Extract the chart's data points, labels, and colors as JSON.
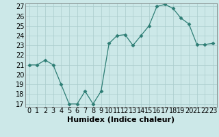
{
  "x": [
    0,
    1,
    2,
    3,
    4,
    5,
    6,
    7,
    8,
    9,
    10,
    11,
    12,
    13,
    14,
    15,
    16,
    17,
    18,
    19,
    20,
    21,
    22,
    23
  ],
  "y": [
    21.0,
    21.0,
    21.5,
    21.0,
    19.0,
    17.0,
    17.0,
    18.3,
    17.0,
    18.3,
    23.2,
    24.0,
    24.1,
    23.0,
    24.0,
    25.0,
    27.0,
    27.2,
    26.8,
    25.8,
    25.2,
    23.1,
    23.1,
    23.2
  ],
  "xlabel": "Humidex (Indice chaleur)",
  "xlim": [
    -0.5,
    23.5
  ],
  "ylim": [
    16.7,
    27.3
  ],
  "yticks": [
    17,
    18,
    19,
    20,
    21,
    22,
    23,
    24,
    25,
    26,
    27
  ],
  "xticks": [
    0,
    1,
    2,
    3,
    4,
    5,
    6,
    7,
    8,
    9,
    10,
    11,
    12,
    13,
    14,
    15,
    16,
    17,
    18,
    19,
    20,
    21,
    22,
    23
  ],
  "line_color": "#2d7d74",
  "marker_color": "#2d7d74",
  "bg_color": "#cce8e8",
  "grid_color": "#aacccc",
  "font_color": "#000000",
  "tick_fontsize": 7,
  "xlabel_fontsize": 8
}
